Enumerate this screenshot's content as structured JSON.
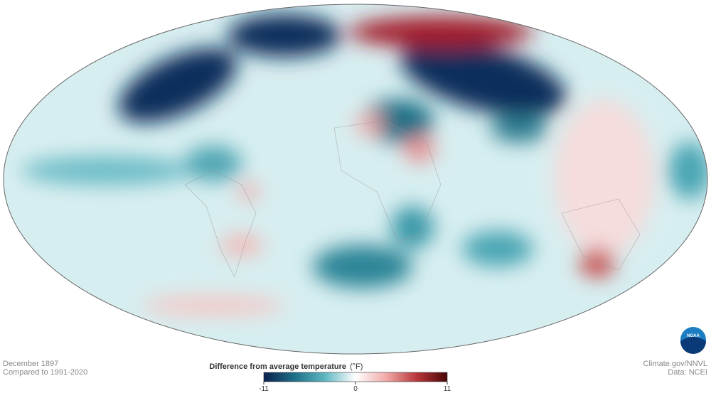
{
  "map": {
    "date": "December 1897",
    "baseline": "Compared to 1991-2020",
    "credit": "Climate.gov/NNVL",
    "source": "Data: NCEI",
    "logo": "NOAA"
  },
  "legend": {
    "title": "Difference from average temperature",
    "unit": "(°F)",
    "range": [
      -11,
      11
    ],
    "ticks": [
      -11,
      0,
      11
    ],
    "colors": [
      "#0b1f4d",
      "#1e6f86",
      "#5fb7c2",
      "#ffffff",
      "#f0aaa8",
      "#b8363a",
      "#4a0606"
    ]
  }
}
